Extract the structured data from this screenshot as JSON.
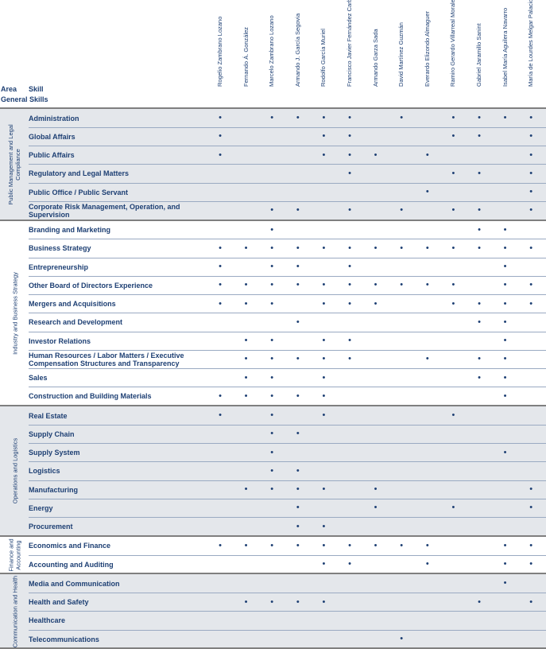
{
  "header": {
    "area": "Area",
    "skill": "Skill",
    "subtitle": "General Skills"
  },
  "people": [
    "Rogelio Zambrano Lozano",
    "Fernando Á. González",
    "Marcelo Zambrano Lozano",
    "Armando J. García Segovia",
    "Rodolfo García Muriel",
    "Francisco Javier Fernández Carbajal",
    "Armando Garza Sada",
    "David Martínez Guzmán",
    "Everardo Elizondo Almaguer",
    "Ramiro Gerardo Villarreal Morales",
    "Gabriel Jaramillo Sanint",
    "Isabel María Aguilera Navarro",
    "María de Lourdes Melgar Palacios"
  ],
  "groups": [
    {
      "area": "Public Management and Legal Compliance",
      "rows": [
        {
          "skill": "Administration",
          "cells": [
            "•",
            null,
            "•",
            "•",
            "•",
            "•",
            null,
            "•",
            null,
            "•",
            "•",
            "•",
            "•"
          ]
        },
        {
          "skill": "Global Affairs",
          "cells": [
            "•",
            null,
            null,
            null,
            "•",
            "•",
            null,
            null,
            null,
            "•",
            "•",
            null,
            "•"
          ]
        },
        {
          "skill": "Public Affairs",
          "cells": [
            "•",
            null,
            null,
            null,
            "•",
            "•",
            "•",
            null,
            "•",
            null,
            null,
            null,
            "•"
          ]
        },
        {
          "skill": "Regulatory and Legal Matters",
          "cells": [
            null,
            null,
            null,
            null,
            null,
            "•",
            null,
            null,
            null,
            "•",
            "•",
            null,
            "•"
          ]
        },
        {
          "skill": "Public Office / Public Servant",
          "cells": [
            null,
            null,
            null,
            null,
            null,
            null,
            null,
            null,
            "•",
            null,
            null,
            null,
            "•"
          ]
        },
        {
          "skill": "Corporate Risk Management, Operation, and Supervision",
          "cells": [
            null,
            null,
            "•",
            "•",
            null,
            "•",
            null,
            "•",
            null,
            "•",
            "•",
            null,
            "•"
          ]
        }
      ]
    },
    {
      "area": "Industry and Business Strategy",
      "rows": [
        {
          "skill": "Branding and Marketing",
          "cells": [
            null,
            null,
            "•",
            null,
            null,
            null,
            null,
            null,
            null,
            null,
            "•",
            "•",
            null
          ]
        },
        {
          "skill": "Business Strategy",
          "cells": [
            "•",
            "•",
            "•",
            "•",
            "•",
            "•",
            "•",
            "•",
            "•",
            "•",
            "•",
            "•",
            "•"
          ]
        },
        {
          "skill": "Entrepreneurship",
          "cells": [
            "•",
            null,
            "•",
            "•",
            null,
            "•",
            null,
            null,
            null,
            null,
            null,
            "•",
            null
          ]
        },
        {
          "skill": "Other Board of Directors Experience",
          "cells": [
            "•",
            "•",
            "•",
            "•",
            "•",
            "•",
            "•",
            "•",
            "•",
            "•",
            null,
            "•",
            "•"
          ]
        },
        {
          "skill": "Mergers and Acquisitions",
          "cells": [
            "•",
            "•",
            "•",
            null,
            "•",
            "•",
            "•",
            null,
            null,
            "•",
            "•",
            "•",
            "•"
          ]
        },
        {
          "skill": "Research and Development",
          "cells": [
            null,
            null,
            null,
            "•",
            null,
            null,
            null,
            null,
            null,
            null,
            "•",
            "•",
            null
          ]
        },
        {
          "skill": "Investor Relations",
          "cells": [
            null,
            "•",
            "•",
            null,
            "•",
            "•",
            null,
            null,
            null,
            null,
            null,
            "•",
            null
          ]
        },
        {
          "skill": "Human Resources / Labor Matters / Executive Compensation Structures and Transparency",
          "cells": [
            null,
            "•",
            "•",
            "•",
            "•",
            "•",
            null,
            null,
            "•",
            null,
            "•",
            "•",
            null
          ]
        },
        {
          "skill": "Sales",
          "cells": [
            null,
            "•",
            "•",
            null,
            "•",
            null,
            null,
            null,
            null,
            null,
            "•",
            "•",
            null
          ]
        },
        {
          "skill": "Construction and Building Materials",
          "cells": [
            "•",
            "•",
            "•",
            "•",
            "•",
            null,
            null,
            null,
            null,
            null,
            null,
            "•",
            null
          ]
        }
      ]
    },
    {
      "area": "Operations and Logistics",
      "rows": [
        {
          "skill": "Real Estate",
          "cells": [
            "•",
            null,
            "•",
            null,
            "•",
            null,
            null,
            null,
            null,
            "•",
            null,
            null,
            null
          ]
        },
        {
          "skill": "Supply Chain",
          "cells": [
            null,
            null,
            "•",
            "•",
            null,
            null,
            null,
            null,
            null,
            null,
            null,
            null,
            null
          ]
        },
        {
          "skill": "Supply System",
          "cells": [
            null,
            null,
            "•",
            null,
            null,
            null,
            null,
            null,
            null,
            null,
            null,
            "•",
            null
          ]
        },
        {
          "skill": "Logistics",
          "cells": [
            null,
            null,
            "•",
            "•",
            null,
            null,
            null,
            null,
            null,
            null,
            null,
            null,
            null
          ]
        },
        {
          "skill": "Manufacturing",
          "cells": [
            null,
            "•",
            "•",
            "•",
            "•",
            null,
            "•",
            null,
            null,
            null,
            null,
            null,
            "•"
          ]
        },
        {
          "skill": "Energy",
          "cells": [
            null,
            null,
            null,
            "•",
            null,
            null,
            "•",
            null,
            null,
            "•",
            null,
            null,
            "•"
          ]
        },
        {
          "skill": "Procurement",
          "cells": [
            null,
            null,
            null,
            "•",
            "•",
            null,
            null,
            null,
            null,
            null,
            null,
            null,
            null
          ]
        }
      ]
    },
    {
      "area": "Finance and Accounting",
      "rows": [
        {
          "skill": "Economics and Finance",
          "cells": [
            "•",
            "•",
            "•",
            "•",
            "•",
            "•",
            "•",
            "•",
            "•",
            null,
            null,
            "•",
            "•"
          ]
        },
        {
          "skill": "Accounting and Auditing",
          "cells": [
            null,
            null,
            null,
            null,
            "•",
            "•",
            null,
            null,
            "•",
            null,
            null,
            "•",
            "•"
          ]
        }
      ]
    },
    {
      "area": "Communication and Health",
      "rows": [
        {
          "skill": "Media and Communication",
          "cells": [
            null,
            null,
            null,
            null,
            null,
            null,
            null,
            null,
            null,
            null,
            null,
            "•",
            null
          ]
        },
        {
          "skill": "Health and Safety",
          "cells": [
            null,
            "•",
            "•",
            "•",
            "•",
            null,
            null,
            null,
            null,
            null,
            "•",
            null,
            "•"
          ]
        },
        {
          "skill": "Healthcare",
          "cells": [
            null,
            null,
            null,
            null,
            null,
            null,
            null,
            null,
            null,
            null,
            null,
            null,
            null
          ]
        },
        {
          "skill": "Telecommunications",
          "cells": [
            null,
            null,
            null,
            null,
            null,
            null,
            null,
            "•",
            null,
            null,
            null,
            null,
            null
          ]
        }
      ]
    }
  ]
}
